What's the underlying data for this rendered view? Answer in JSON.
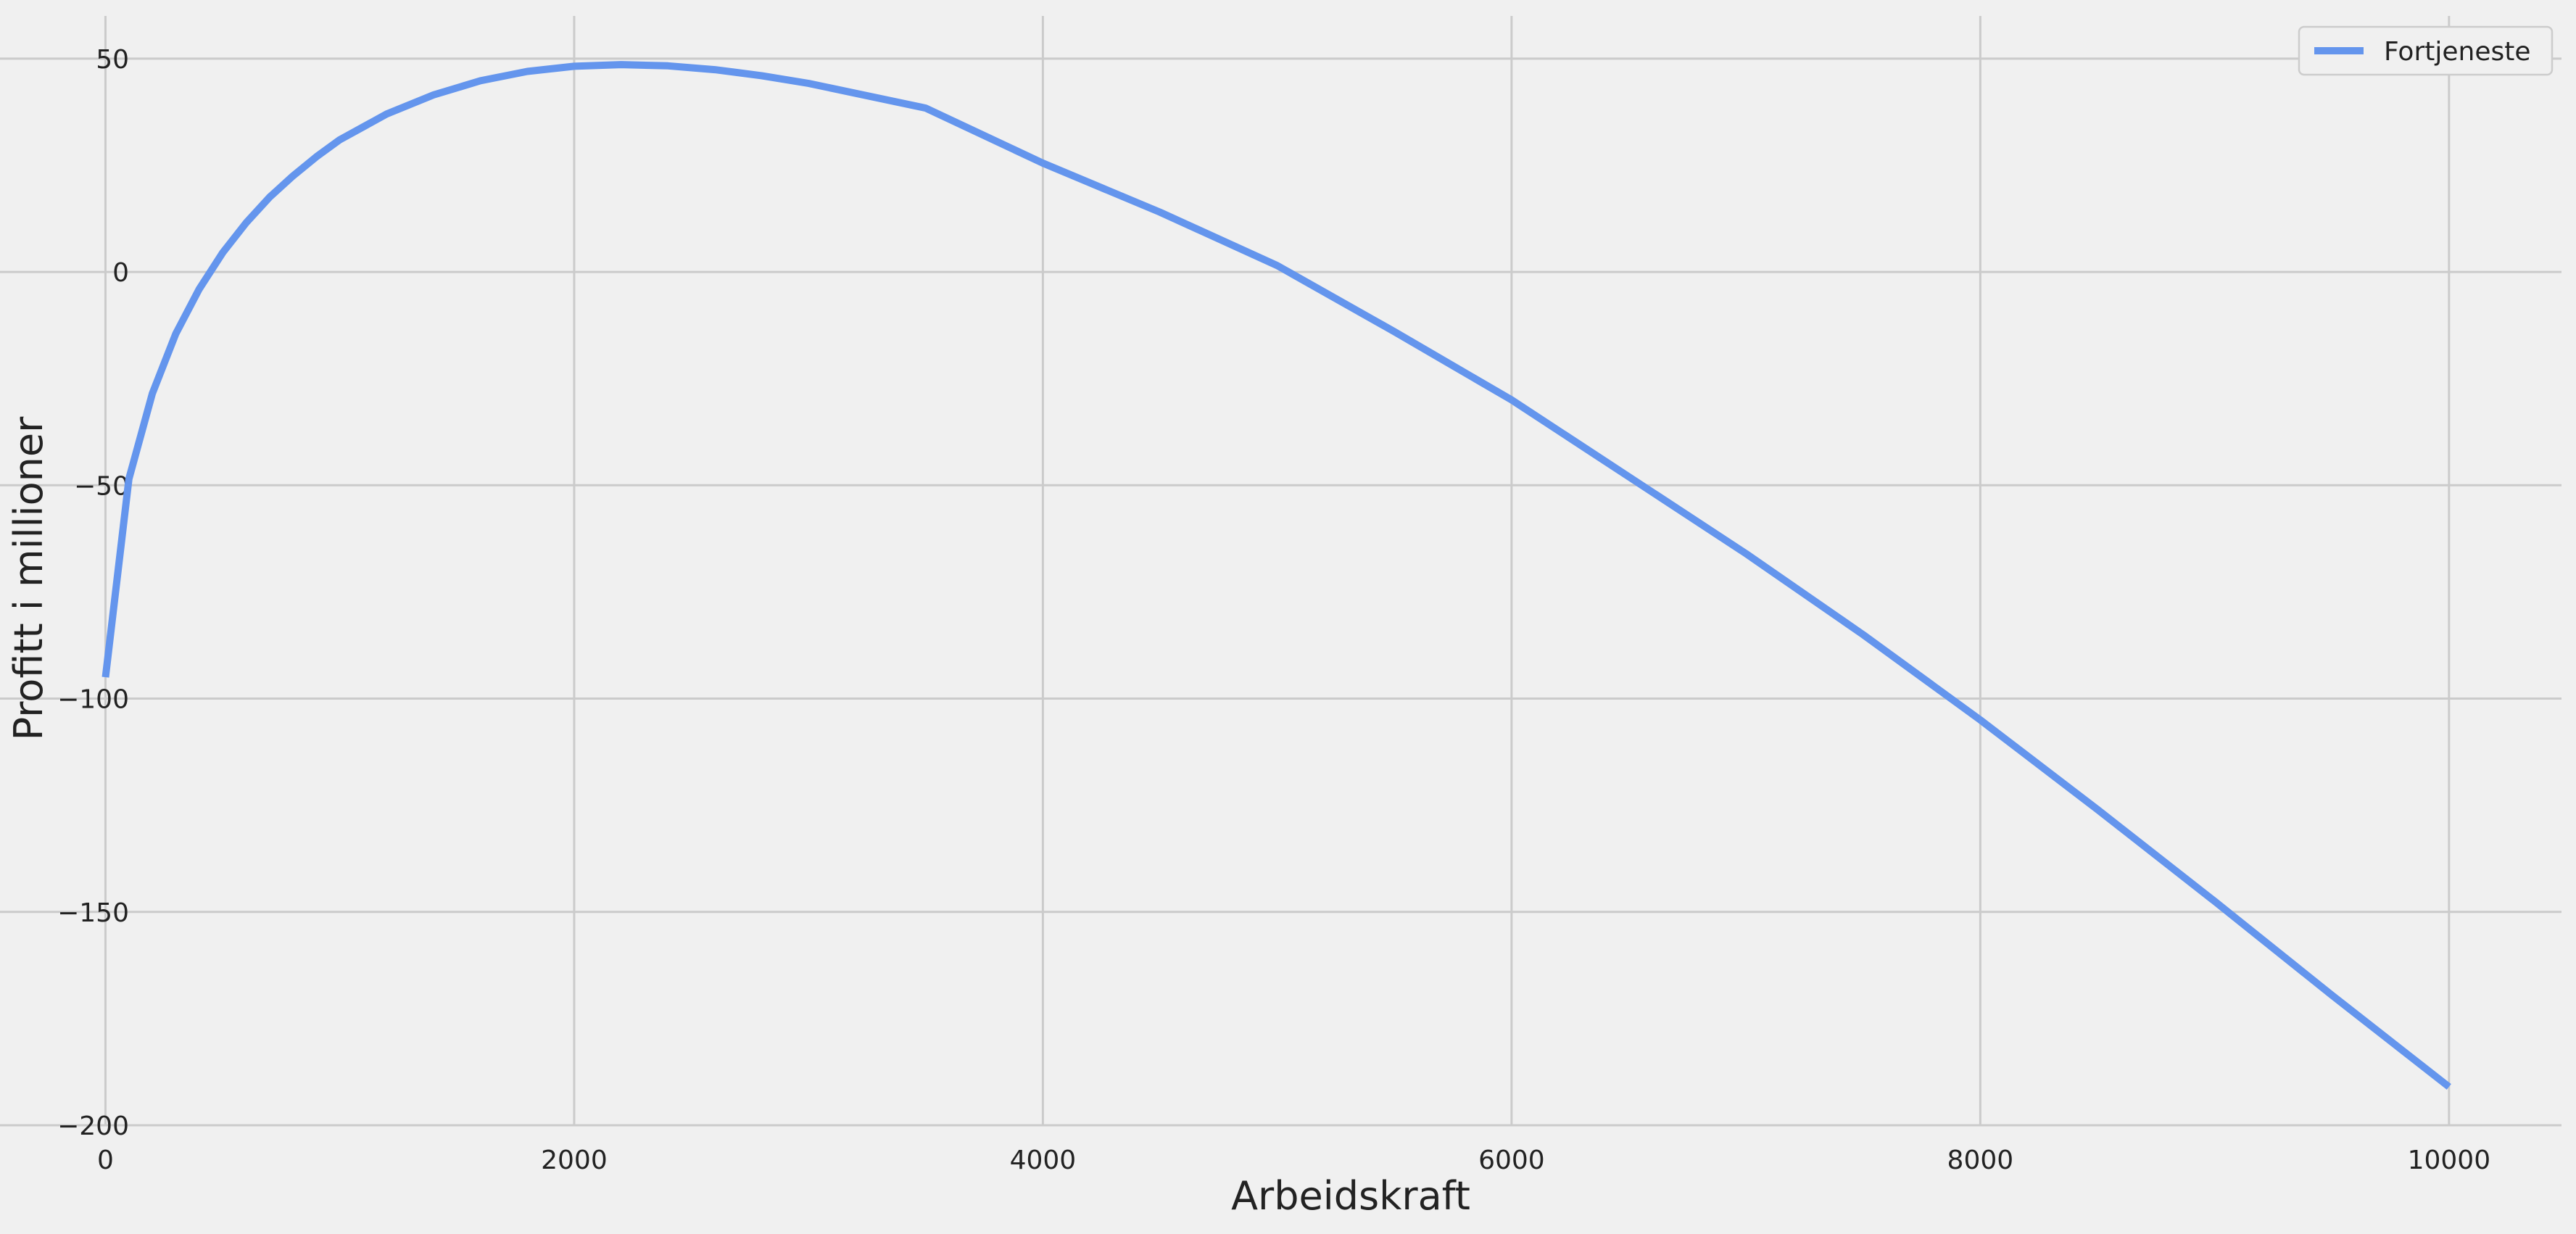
{
  "chart_data": {
    "type": "line",
    "title": "",
    "xlabel": "Arbeidskraft",
    "ylabel": "Profitt i millioner",
    "xlim": [
      -450,
      10480
    ],
    "ylim": [
      -200,
      60
    ],
    "xticks": [
      0,
      2000,
      4000,
      6000,
      8000,
      10000
    ],
    "xtick_labels": [
      "0",
      "2000",
      "4000",
      "6000",
      "8000",
      "10000"
    ],
    "yticks": [
      50,
      0,
      -50,
      -100,
      -150,
      -200
    ],
    "ytick_labels": [
      "50",
      "0",
      "−50",
      "−100",
      "−150",
      "−200"
    ],
    "grid": true,
    "legend_position": "top-right",
    "series": [
      {
        "name": "Fortjeneste",
        "color": "#6495ED",
        "x": [
          0,
          100,
          200,
          300,
          400,
          500,
          600,
          700,
          800,
          900,
          1000,
          1200,
          1400,
          1600,
          1800,
          2000,
          2200,
          2400,
          2600,
          2800,
          3000,
          3500,
          4000,
          4500,
          5000,
          5500,
          6000,
          6500,
          7000,
          7500,
          8000,
          8500,
          9000,
          9500,
          10000
        ],
        "y": [
          -95,
          -48.5,
          -28.5,
          -14.5,
          -4,
          4.5,
          11.5,
          17.5,
          22.5,
          27,
          31,
          37,
          41.5,
          44.8,
          47,
          48.2,
          48.6,
          48.3,
          47.4,
          46,
          44.2,
          38.4,
          25.5,
          14,
          1.5,
          -14,
          -30,
          -48,
          -66,
          -85,
          -105,
          -126,
          -147.5,
          -169.5,
          -191
        ]
      }
    ]
  }
}
